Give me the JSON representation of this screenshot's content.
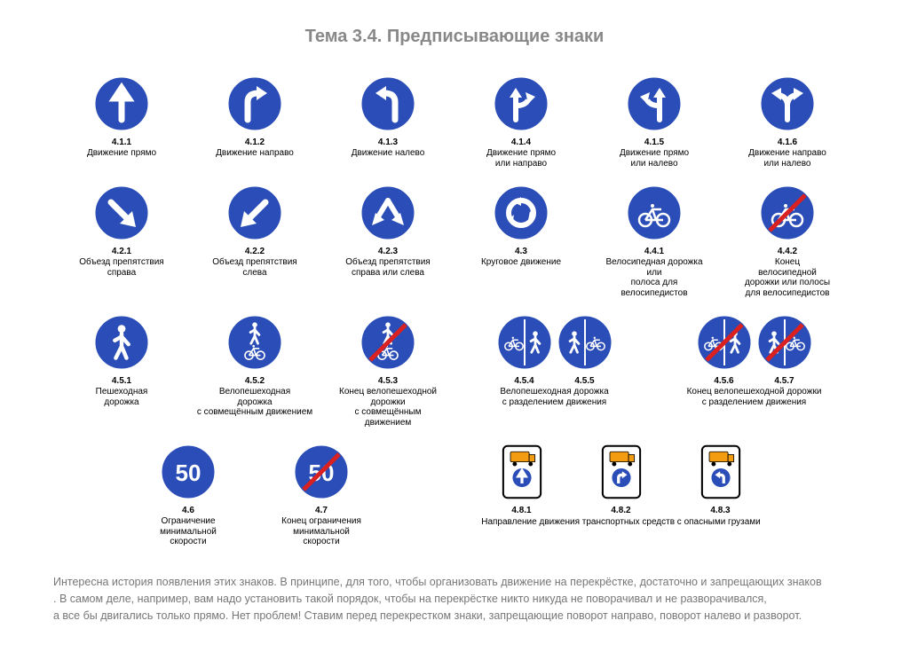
{
  "title": "Тема 3.4. Предписывающие знаки",
  "colors": {
    "sign_blue": "#2a4db7",
    "white": "#ffffff",
    "red": "#d92121",
    "orange": "#f39c12",
    "black": "#000000"
  },
  "row1": [
    {
      "code": "4.1.1",
      "label": "Движение прямо",
      "icon": "arrow-up"
    },
    {
      "code": "4.1.2",
      "label": "Движение направо",
      "icon": "arrow-right-turn"
    },
    {
      "code": "4.1.3",
      "label": "Движение налево",
      "icon": "arrow-left-turn"
    },
    {
      "code": "4.1.4",
      "label": "Движение прямо\nили направо",
      "icon": "arrow-up-right"
    },
    {
      "code": "4.1.5",
      "label": "Движение прямо\nили налево",
      "icon": "arrow-up-left"
    },
    {
      "code": "4.1.6",
      "label": "Движение направо\nили налево",
      "icon": "arrow-left-right"
    }
  ],
  "row2": [
    {
      "code": "4.2.1",
      "label": "Объезд препятствия\nсправа",
      "icon": "arrow-diag-right"
    },
    {
      "code": "4.2.2",
      "label": "Объезд препятствия\nслева",
      "icon": "arrow-diag-left"
    },
    {
      "code": "4.2.3",
      "label": "Объезд препятствия\nсправа или слева",
      "icon": "arrow-diag-both"
    },
    {
      "code": "4.3",
      "label": "Круговое движение",
      "icon": "roundabout"
    },
    {
      "code": "4.4.1",
      "label": "Велосипедная дорожка\nили\nполоса для\nвелосипедистов",
      "icon": "bicycle"
    },
    {
      "code": "4.4.2",
      "label": "Конец\nвелосипедной\nдорожки или полосы\nдля велосипедистов",
      "icon": "bicycle-end"
    }
  ],
  "row3": [
    {
      "code": "4.5.1",
      "label": "Пешеходная\nдорожка",
      "icon": "pedestrian"
    },
    {
      "code": "4.5.2",
      "label": "Велопешеходная\nдорожка\nс совмещённым движением",
      "icon": "ped-bike-shared"
    },
    {
      "code": "4.5.3",
      "label": "Конец велопешеходной дорожки\nс совмещённым\nдвижением",
      "icon": "ped-bike-shared-end"
    }
  ],
  "row3_pairs": [
    {
      "codes": [
        "4.5.4",
        "4.5.5"
      ],
      "label": "Велопешеходная дорожка\nс разделением движения",
      "iconL": "split-bike-ped",
      "iconR": "split-ped-bike"
    },
    {
      "codes": [
        "4.5.6",
        "4.5.7"
      ],
      "label": "Конец велопешеходной дорожки\nс разделением движения",
      "iconL": "split-bike-ped-end",
      "iconR": "split-ped-bike-end"
    }
  ],
  "row4_left": [
    {
      "code": "4.6",
      "label": "Ограничение\nминимальной\nскорости",
      "icon": "speed-50"
    },
    {
      "code": "4.7",
      "label": "Конец ограничения\nминимальной\nскорости",
      "icon": "speed-50-end"
    }
  ],
  "row4_right": {
    "items": [
      {
        "code": "4.8.1",
        "icon": "hazmat-straight"
      },
      {
        "code": "4.8.2",
        "icon": "hazmat-right"
      },
      {
        "code": "4.8.3",
        "icon": "hazmat-left"
      }
    ],
    "label": "Направление движения транспортных средств с опасными грузами"
  },
  "footer": [
    "Интересна история появления этих знаков. В принципе, для того, чтобы организовать движение на перекрёстке, достаточно и запрещающих знаков",
    ". В самом деле, например, вам надо установить такой порядок, чтобы на перекрёстке никто никуда не поворачивал и не разворачивался,",
    "а все бы двигались только прямо. Нет проблем! Ставим перед перекрестком знаки, запрещающие поворот направо, поворот налево и разворот."
  ]
}
